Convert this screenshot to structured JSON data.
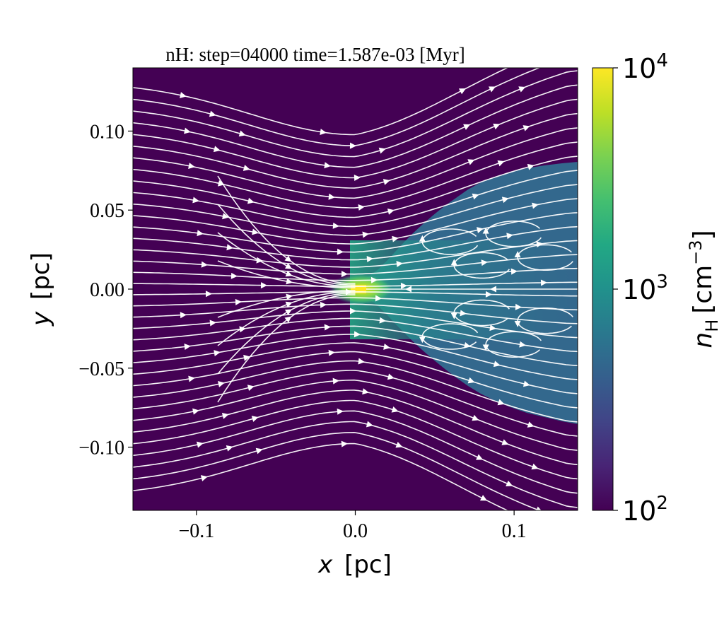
{
  "chart_data": {
    "type": "heatmap",
    "title": "nH: step=04000 time=1.587e-03 [Myr]",
    "xlabel": "x",
    "xlabel_unit": "[pc]",
    "ylabel": "y",
    "ylabel_unit": "[pc]",
    "xlim": [
      -0.14,
      0.14
    ],
    "ylim": [
      -0.14,
      0.14
    ],
    "x_ticks": [
      -0.1,
      0.0,
      0.1
    ],
    "x_tick_labels": [
      "−0.1",
      "0.0",
      "0.1"
    ],
    "y_ticks": [
      0.1,
      0.05,
      0.0,
      -0.05,
      -0.1
    ],
    "y_tick_labels": [
      "0.10",
      "0.05",
      "0.00",
      "−0.05",
      "−0.10"
    ],
    "colorbar": {
      "label": "n",
      "label_sub": "H",
      "label_unit": "[cm",
      "label_unit_sup": "−3",
      "label_unit_close": "]",
      "scale": "log",
      "range": [
        100,
        10000
      ],
      "ticks": [
        100,
        1000,
        10000
      ],
      "tick_labels": [
        {
          "base": "10",
          "exp": "2"
        },
        {
          "base": "10",
          "exp": "3"
        },
        {
          "base": "10",
          "exp": "4"
        }
      ],
      "colormap": "viridis"
    },
    "field": {
      "background_density": 100,
      "wake_density": 700,
      "peak_density": 8000,
      "peak_position": [
        0.003,
        0.0
      ]
    },
    "overlay": {
      "type": "streamlines",
      "color": "#ffffff",
      "flow_direction": "+x"
    }
  },
  "colors": {
    "background_field": "#440154",
    "wake_field": "#30708d",
    "wake_mid": "#2fa082",
    "core": "#9fda3a",
    "peak": "#fde725",
    "streamline": "#ffffff",
    "axis": "#000000"
  }
}
